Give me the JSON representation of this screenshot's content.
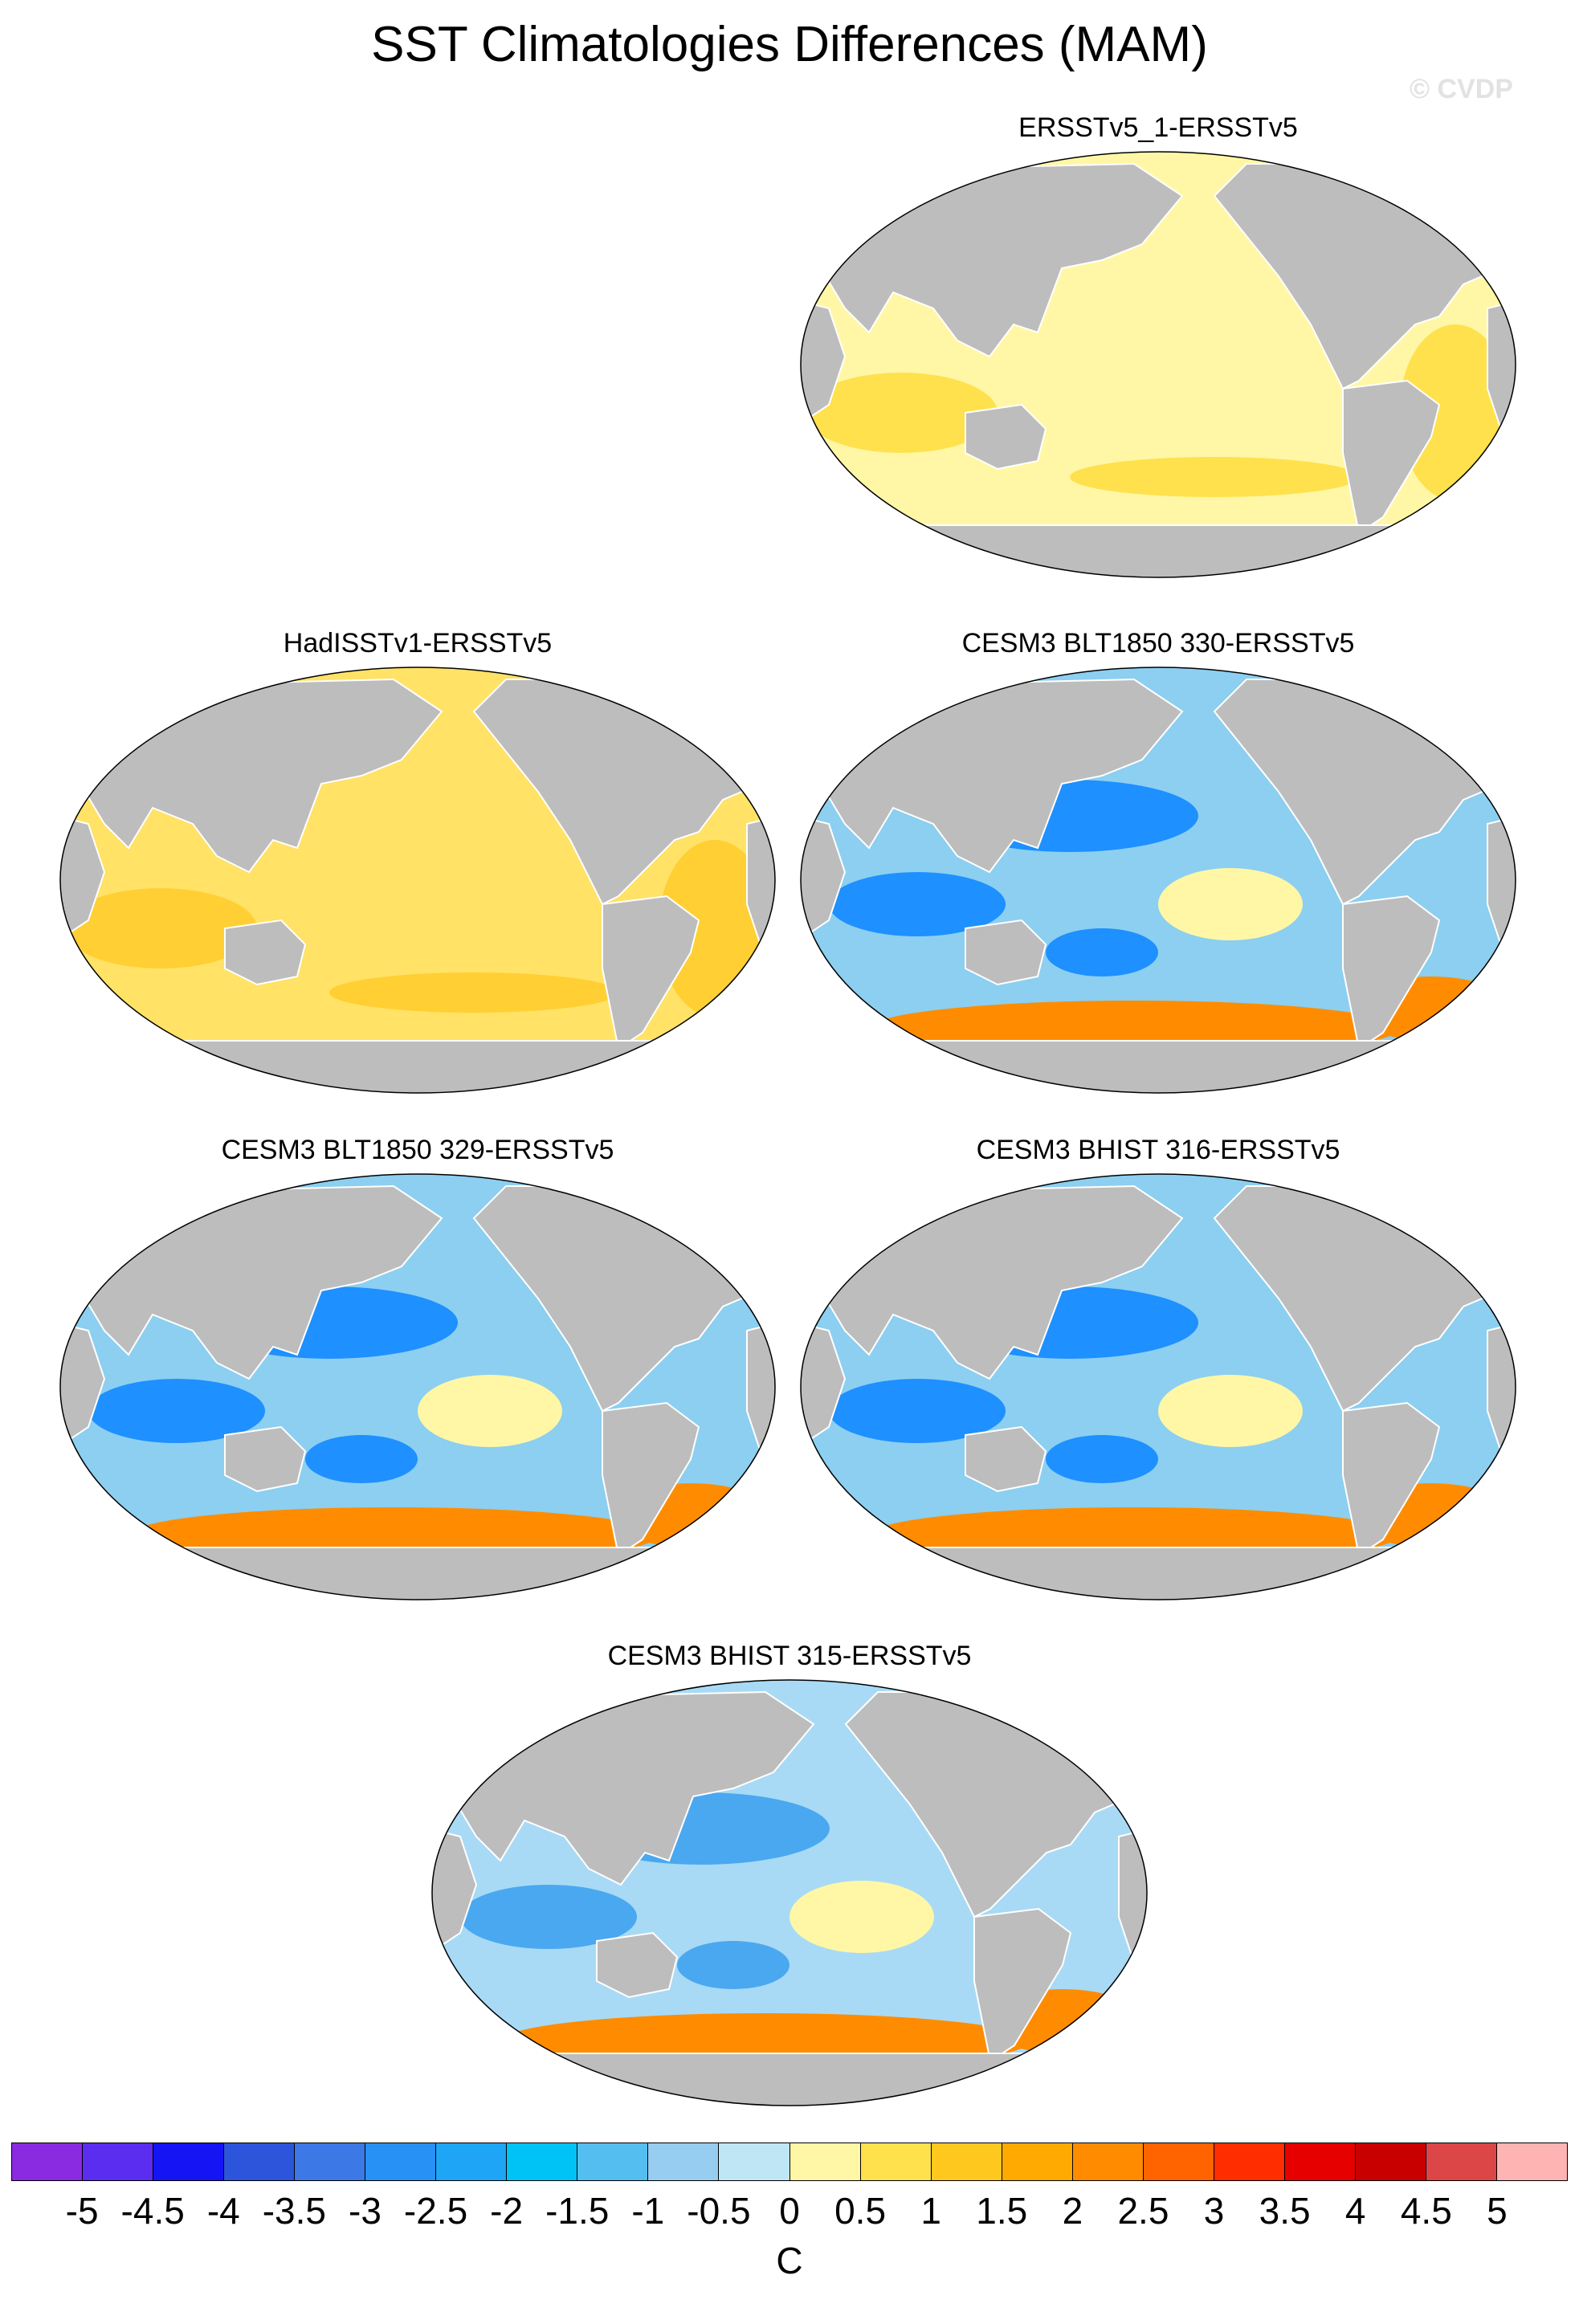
{
  "title": "SST Climatologies Differences (MAM)",
  "watermark": "© CVDP",
  "panels": [
    {
      "title": "ERSSTv5_1-ERSSTv5",
      "ocean_color": "#fff7a6",
      "features": [
        {
          "type": "warm",
          "color": "#ffe14d"
        },
        {
          "type": "cool",
          "color": "#bfe3f5"
        }
      ]
    },
    {
      "title": "HadISSTv1-ERSSTv5",
      "ocean_color": "#ffe266",
      "features": [
        {
          "type": "warm",
          "color": "#ffcf33"
        },
        {
          "type": "cool",
          "color": "#bfe3f5"
        }
      ]
    },
    {
      "title": "CESM3 BLT1850 330-ERSSTv5",
      "ocean_color": "#8ccff0",
      "features": [
        {
          "type": "cool",
          "color": "#1e90ff"
        },
        {
          "type": "warm",
          "color": "#fff7a6"
        },
        {
          "type": "hot",
          "color": "#ff8c00"
        },
        {
          "type": "max",
          "color": "#e60000"
        }
      ]
    },
    {
      "title": "CESM3 BLT1850 329-ERSSTv5",
      "ocean_color": "#8ccff0",
      "features": [
        {
          "type": "cool",
          "color": "#1e90ff"
        },
        {
          "type": "warm",
          "color": "#fff7a6"
        },
        {
          "type": "hot",
          "color": "#ff8c00"
        },
        {
          "type": "max",
          "color": "#e60000"
        }
      ]
    },
    {
      "title": "CESM3 BHIST 316-ERSSTv5",
      "ocean_color": "#8ccff0",
      "features": [
        {
          "type": "cool",
          "color": "#1e90ff"
        },
        {
          "type": "warm",
          "color": "#fff7a6"
        },
        {
          "type": "hot",
          "color": "#ff8c00"
        },
        {
          "type": "max",
          "color": "#e60000"
        }
      ]
    },
    {
      "title": "CESM3 BHIST 315-ERSSTv5",
      "ocean_color": "#a8daf5",
      "features": [
        {
          "type": "cool",
          "color": "#4aa8f0"
        },
        {
          "type": "warm",
          "color": "#fff7a6"
        },
        {
          "type": "hot",
          "color": "#ff8c00"
        },
        {
          "type": "max",
          "color": "#e60000"
        }
      ]
    }
  ],
  "land_color": "#bdbdbd",
  "colorbar": {
    "colors": [
      "#8a2be2",
      "#5a2df0",
      "#1414f5",
      "#2d55dc",
      "#3c78e6",
      "#2891f5",
      "#1ea5f5",
      "#00c3f5",
      "#55bef0",
      "#96cdf0",
      "#bee6f5",
      "#fff7a6",
      "#ffe14d",
      "#ffc81e",
      "#ffaa00",
      "#ff8c00",
      "#ff6400",
      "#ff2d00",
      "#e60000",
      "#c80000",
      "#dc4646",
      "#ffb4b4"
    ],
    "labels": [
      "-5",
      "-4.5",
      "-4",
      "-3.5",
      "-3",
      "-2.5",
      "-2",
      "-1.5",
      "-1",
      "-0.5",
      "0",
      "0.5",
      "1",
      "1.5",
      "2",
      "2.5",
      "3",
      "3.5",
      "4",
      "4.5",
      "5"
    ],
    "units": "C"
  }
}
